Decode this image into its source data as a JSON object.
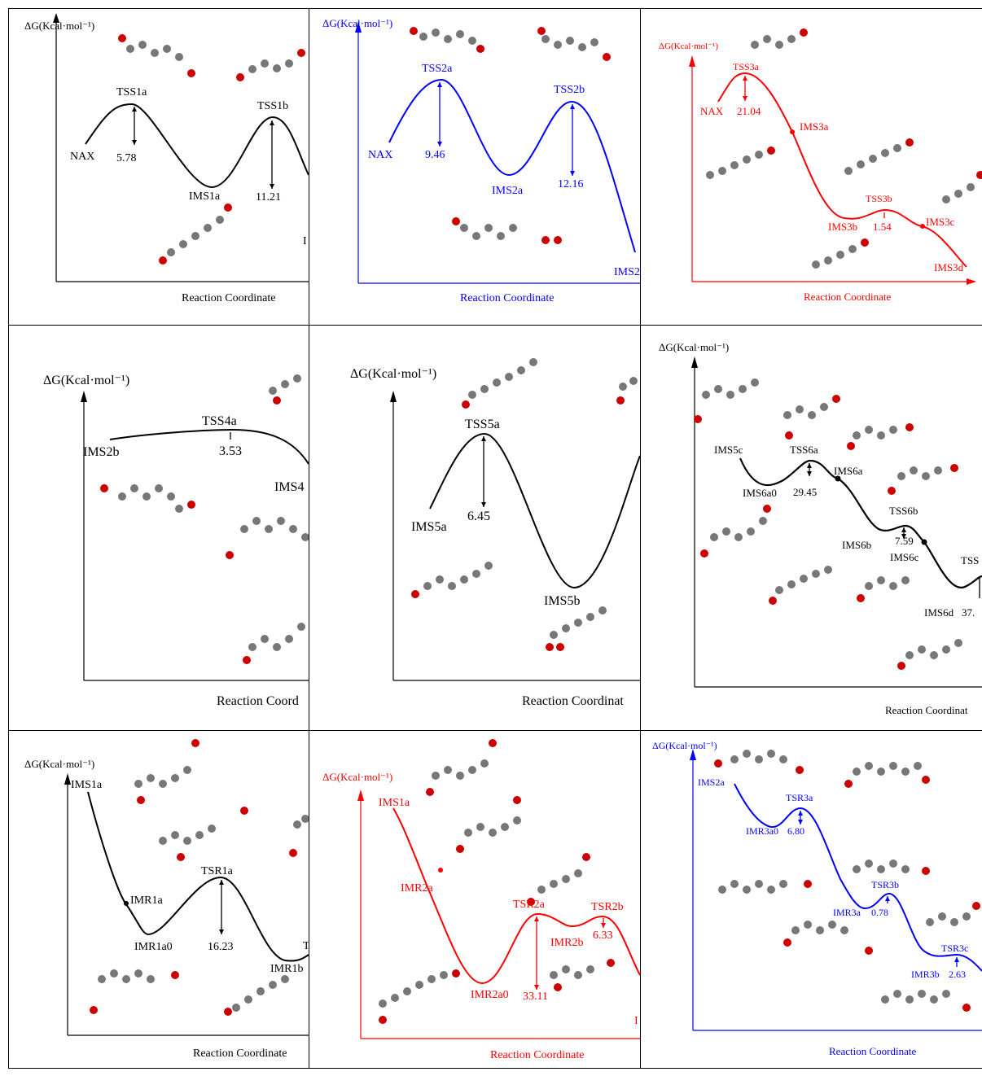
{
  "panels": [
    {
      "id": "p1",
      "color": "#000000",
      "ylabel": "ΔG(Kcal·mol⁻¹)",
      "xlabel": "Reaction Coordinate",
      "labels": [
        "NAX",
        "TSS1a",
        "5.78",
        "IMS1a",
        "TSS1b",
        "11.21",
        "I"
      ],
      "curve_points": [
        [
          0,
          0
        ],
        [
          1,
          5.78
        ],
        [
          2,
          -3.5
        ],
        [
          3,
          4.0
        ],
        [
          4,
          -2.0
        ]
      ]
    },
    {
      "id": "p2",
      "color": "#0000ff",
      "ylabel": "ΔG(Kcal·mol⁻¹)",
      "xlabel": "Reaction Coordinate",
      "labels": [
        "NAX",
        "TSS2a",
        "9.46",
        "IMS2a",
        "TSS2b",
        "12.16",
        "IMS2"
      ],
      "curve_points": [
        [
          0,
          0
        ],
        [
          1,
          9.46
        ],
        [
          2,
          -1.5
        ],
        [
          3,
          6.5
        ],
        [
          4,
          -12
        ]
      ]
    },
    {
      "id": "p3",
      "color": "#ff0000",
      "ylabel": "ΔG(Kcal·mol⁻¹)",
      "xlabel": "Reaction Coordinate",
      "labels": [
        "TSS3a",
        "NAX",
        "21.04",
        "IMS3a",
        "TSS3b",
        "IMS3b",
        "1.54",
        "IMS3c",
        "IMS3d"
      ],
      "curve_points": [
        [
          0,
          0
        ],
        [
          1,
          21.04
        ],
        [
          2,
          8
        ],
        [
          3,
          -18
        ],
        [
          4,
          -16.5
        ],
        [
          5,
          -22
        ]
      ]
    },
    {
      "id": "p4",
      "color": "#000000",
      "ylabel": "ΔG(Kcal·mol⁻¹)",
      "xlabel": "Reaction Coord",
      "labels": [
        "TSS4a",
        "IMS2b",
        "3.53",
        "IMS4"
      ],
      "curve_points": [
        [
          0,
          0
        ],
        [
          1,
          3.53
        ],
        [
          2,
          -5
        ]
      ]
    },
    {
      "id": "p5",
      "color": "#000000",
      "ylabel": "ΔG(Kcal·mol⁻¹)",
      "xlabel": "Reaction Coordinat",
      "labels": [
        "TSS5a",
        "IMS5a",
        "6.45",
        "IMS5b"
      ],
      "curve_points": [
        [
          0,
          0
        ],
        [
          1,
          6.45
        ],
        [
          2,
          -10
        ],
        [
          3,
          6
        ]
      ]
    },
    {
      "id": "p6",
      "color": "#000000",
      "ylabel": "ΔG(Kcal·mol⁻¹)",
      "xlabel": "Reaction Coordinat",
      "labels": [
        "IMS5c",
        "TSS6a",
        "IMS6a",
        "IMS6a0",
        "29.45",
        "TSS6b",
        "IMS6b",
        "7.59",
        "IMS6c",
        "TSS",
        "IMS6d",
        "37."
      ],
      "curve_points": [
        [
          0,
          0
        ],
        [
          1,
          -3
        ],
        [
          2,
          1.5
        ],
        [
          3,
          -8
        ],
        [
          4,
          -6.5
        ],
        [
          5,
          -15
        ],
        [
          6,
          -12
        ]
      ]
    },
    {
      "id": "p7",
      "color": "#000000",
      "ylabel": "ΔG(Kcal·mol⁻¹)",
      "xlabel": "Reaction Coordinate",
      "labels": [
        "IMS1a",
        "TSR1a",
        "IMR1a",
        "IMR1a0",
        "16.23",
        "IMR1b",
        "T"
      ],
      "curve_points": [
        [
          0,
          0
        ],
        [
          1,
          -24
        ],
        [
          2,
          -33
        ],
        [
          3,
          -17
        ],
        [
          4,
          -32
        ]
      ]
    },
    {
      "id": "p8",
      "color": "#ff0000",
      "ylabel": "ΔG(Kcal·mol⁻¹)",
      "xlabel": "Reaction Coordinate",
      "labels": [
        "IMS1a",
        "IMR2a",
        "TSR2a",
        "TSR2b",
        "6.33",
        "IMR2b",
        "IMR2a0",
        "33.11",
        "I"
      ],
      "curve_points": [
        [
          0,
          0
        ],
        [
          1,
          -20
        ],
        [
          2,
          -45
        ],
        [
          3,
          -13
        ],
        [
          4,
          -19
        ],
        [
          5,
          -15
        ],
        [
          6,
          -25
        ]
      ]
    },
    {
      "id": "p9",
      "color": "#0000ff",
      "ylabel": "ΔG(Kcal·mol⁻¹)",
      "xlabel": "Reaction Coordinate",
      "labels": [
        "IMS2a",
        "TSR3a",
        "IMR3a0",
        "6.80",
        "TSR3b",
        "IMR3a",
        "0.78",
        "TSR3c",
        "IMR3b",
        "2.63"
      ],
      "curve_points": [
        [
          0,
          0
        ],
        [
          1,
          -6
        ],
        [
          2,
          0.8
        ],
        [
          3,
          -14
        ],
        [
          4,
          -13.2
        ],
        [
          5,
          -20
        ],
        [
          6,
          -17.4
        ]
      ]
    }
  ]
}
